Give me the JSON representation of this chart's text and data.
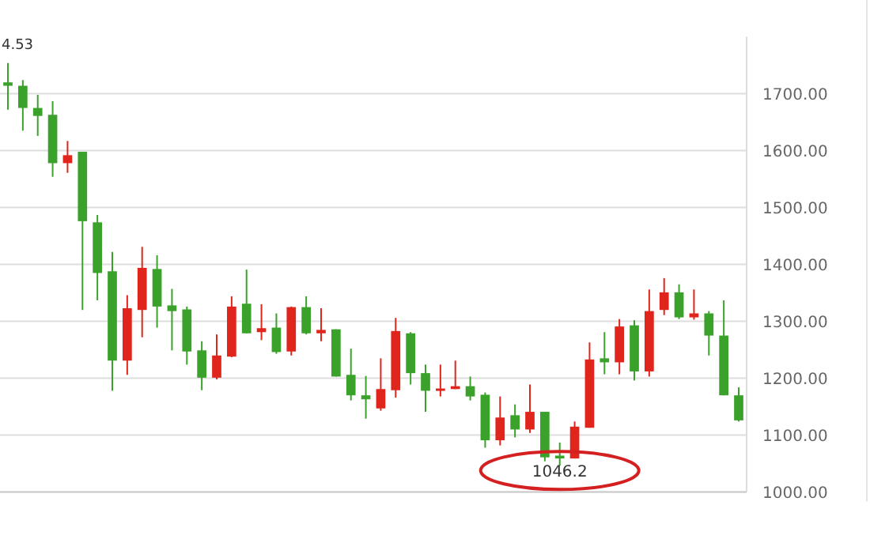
{
  "chart_data": {
    "type": "candlestick",
    "categories": [
      null,
      null,
      null,
      null,
      null,
      null,
      null,
      null,
      null,
      null,
      null,
      null,
      null,
      null,
      null,
      null,
      null,
      null,
      null,
      null,
      null,
      null,
      null,
      null,
      null,
      null,
      null,
      null,
      null,
      null,
      null,
      null,
      null,
      null,
      null,
      null,
      null,
      null,
      null,
      null,
      null,
      null,
      null,
      null,
      null,
      null,
      null,
      null,
      null,
      null
    ],
    "ohlc": [
      [
        1720,
        1754,
        1672,
        1714
      ],
      [
        1714,
        1724,
        1635,
        1675
      ],
      [
        1675,
        1698,
        1626,
        1661
      ],
      [
        1663,
        1687,
        1554,
        1578
      ],
      [
        1578,
        1617,
        1561,
        1592
      ],
      [
        1598,
        1598,
        1320,
        1476
      ],
      [
        1474,
        1487,
        1337,
        1385
      ],
      [
        1388,
        1422,
        1178,
        1231
      ],
      [
        1231,
        1346,
        1206,
        1323
      ],
      [
        1320,
        1431,
        1272,
        1394
      ],
      [
        1392,
        1416,
        1289,
        1326
      ],
      [
        1328,
        1357,
        1249,
        1318
      ],
      [
        1321,
        1326,
        1224,
        1247
      ],
      [
        1249,
        1265,
        1179,
        1201
      ],
      [
        1201,
        1277,
        1198,
        1240
      ],
      [
        1238,
        1344,
        1237,
        1326
      ],
      [
        1331,
        1391,
        1279,
        1279
      ],
      [
        1281,
        1330,
        1267,
        1288
      ],
      [
        1289,
        1314,
        1243,
        1246
      ],
      [
        1247,
        1326,
        1240,
        1325
      ],
      [
        1325,
        1344,
        1277,
        1279
      ],
      [
        1279,
        1323,
        1265,
        1285
      ],
      [
        1286,
        1286,
        1203,
        1203
      ],
      [
        1206,
        1252,
        1161,
        1170
      ],
      [
        1170,
        1204,
        1129,
        1163
      ],
      [
        1147,
        1235,
        1143,
        1181
      ],
      [
        1179,
        1306,
        1166,
        1283
      ],
      [
        1279,
        1281,
        1189,
        1209
      ],
      [
        1209,
        1224,
        1141,
        1178
      ],
      [
        1178,
        1224,
        1168,
        1182
      ],
      [
        1181,
        1231,
        1181,
        1186
      ],
      [
        1186,
        1203,
        1161,
        1168
      ],
      [
        1171,
        1175,
        1078,
        1091
      ],
      [
        1091,
        1168,
        1082,
        1131
      ],
      [
        1135,
        1154,
        1096,
        1110
      ],
      [
        1110,
        1189,
        1104,
        1141
      ],
      [
        1141,
        1141,
        1054,
        1061
      ],
      [
        1064,
        1087,
        1046.2,
        1059
      ],
      [
        1059,
        1124,
        1059,
        1115
      ],
      [
        1113,
        1263,
        1113,
        1233
      ],
      [
        1235,
        1281,
        1207,
        1228
      ],
      [
        1228,
        1304,
        1207,
        1291
      ],
      [
        1293,
        1302,
        1196,
        1212
      ],
      [
        1212,
        1356,
        1203,
        1318
      ],
      [
        1320,
        1376,
        1311,
        1351
      ],
      [
        1351,
        1365,
        1304,
        1307
      ],
      [
        1307,
        1356,
        1303,
        1314
      ],
      [
        1314,
        1318,
        1240,
        1275
      ],
      [
        1275,
        1337,
        1170,
        1170
      ],
      [
        1170,
        1184,
        1124,
        1126
      ]
    ],
    "colors": [
      "#3aa22a",
      "#3aa22a",
      "#3aa22a",
      "#3aa22a",
      "#e0261c",
      "#3aa22a",
      "#3aa22a",
      "#3aa22a",
      "#e0261c",
      "#e0261c",
      "#3aa22a",
      "#3aa22a",
      "#3aa22a",
      "#3aa22a",
      "#e0261c",
      "#e0261c",
      "#3aa22a",
      "#e0261c",
      "#3aa22a",
      "#e0261c",
      "#3aa22a",
      "#e0261c",
      "#3aa22a",
      "#3aa22a",
      "#3aa22a",
      "#e0261c",
      "#e0261c",
      "#3aa22a",
      "#3aa22a",
      "#e0261c",
      "#e0261c",
      "#3aa22a",
      "#3aa22a",
      "#e0261c",
      "#3aa22a",
      "#e0261c",
      "#3aa22a",
      "#3aa22a",
      "#e0261c",
      "#e0261c",
      "#3aa22a",
      "#e0261c",
      "#3aa22a",
      "#e0261c",
      "#e0261c",
      "#3aa22a",
      "#e0261c",
      "#3aa22a",
      "#3aa22a",
      "#3aa22a"
    ],
    "ylim": [
      1000,
      1800
    ],
    "yticks": [
      {
        "value": 1000,
        "label": "1000.00"
      },
      {
        "value": 1100,
        "label": "1100.00"
      },
      {
        "value": 1200,
        "label": "1200.00"
      },
      {
        "value": 1300,
        "label": "1300.00"
      },
      {
        "value": 1400,
        "label": "1400.00"
      },
      {
        "value": 1500,
        "label": "1500.00"
      },
      {
        "value": 1600,
        "label": "1600.00"
      },
      {
        "value": 1700,
        "label": "1700.00"
      }
    ],
    "grid": "y",
    "annotations": [
      "4.53",
      "1046.2"
    ]
  }
}
